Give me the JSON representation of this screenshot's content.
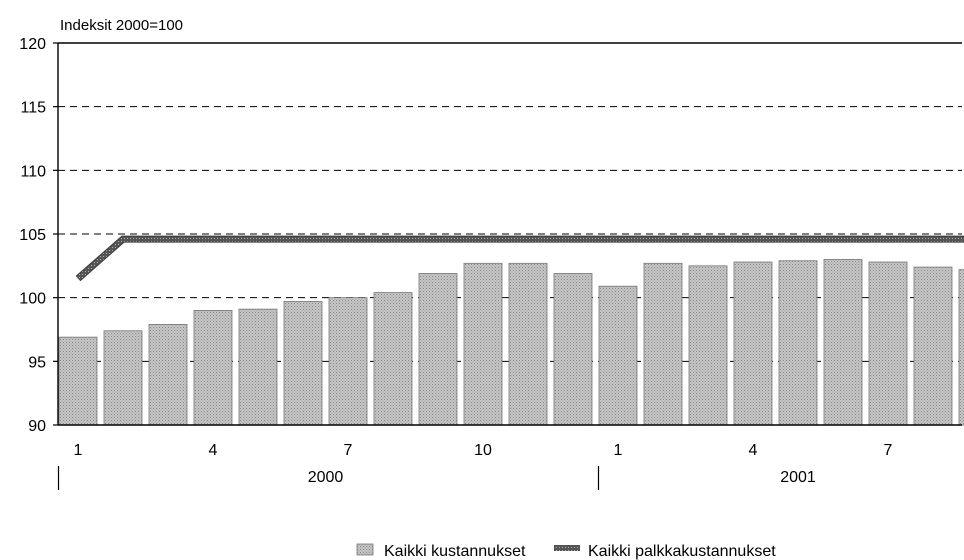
{
  "chart_data": {
    "type": "bar",
    "unit_label": "Indeksit 2000=100",
    "ylim": [
      90,
      120
    ],
    "y_ticks": [
      90,
      95,
      100,
      105,
      110,
      115,
      120
    ],
    "grid": "dashed-horizontal",
    "x_tick_labels": [
      {
        "index": 0,
        "label": "1"
      },
      {
        "index": 3,
        "label": "4"
      },
      {
        "index": 6,
        "label": "7"
      },
      {
        "index": 9,
        "label": "10"
      },
      {
        "index": 12,
        "label": "1"
      },
      {
        "index": 15,
        "label": "4"
      },
      {
        "index": 18,
        "label": "7"
      }
    ],
    "year_groups": [
      {
        "label": "2000",
        "start": 0,
        "end": 11
      },
      {
        "label": "2001",
        "start": 12,
        "end": 20
      }
    ],
    "series": [
      {
        "name": "Kaikki kustannukset",
        "kind": "bar",
        "color": "#bdbdbd",
        "values": [
          96.9,
          97.4,
          97.9,
          99.0,
          99.1,
          99.7,
          100.0,
          100.4,
          101.9,
          102.7,
          102.7,
          101.9,
          100.9,
          102.7,
          102.5,
          102.8,
          102.9,
          103.0,
          102.8,
          102.4,
          102.2
        ]
      },
      {
        "name": "Kaikki palkkakustannukset",
        "kind": "line",
        "color": "#555555",
        "values": [
          101.5,
          104.6,
          104.6,
          104.6,
          104.6,
          104.6,
          104.6,
          104.6,
          104.6,
          104.6,
          104.6,
          104.6,
          104.6,
          104.6,
          104.6,
          104.6,
          104.6,
          104.6,
          104.6,
          104.6,
          104.6
        ]
      }
    ],
    "legend_position": "bottom-center"
  }
}
